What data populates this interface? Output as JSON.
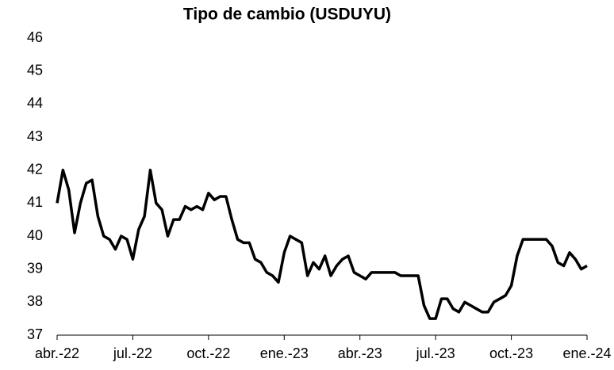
{
  "chart_data": {
    "type": "line",
    "title": "Tipo de cambio (USDUYU)",
    "categories": [
      "abr.-22",
      null,
      null,
      null,
      null,
      null,
      null,
      null,
      null,
      null,
      null,
      null,
      null,
      "jul.-22",
      null,
      null,
      null,
      null,
      null,
      null,
      null,
      null,
      null,
      null,
      null,
      null,
      "oct.-22",
      null,
      null,
      null,
      null,
      null,
      null,
      null,
      null,
      null,
      null,
      null,
      null,
      "ene.-23",
      null,
      null,
      null,
      null,
      null,
      null,
      null,
      null,
      null,
      null,
      null,
      null,
      "abr.-23",
      null,
      null,
      null,
      null,
      null,
      null,
      null,
      null,
      null,
      null,
      null,
      null,
      "jul.-23",
      null,
      null,
      null,
      null,
      null,
      null,
      null,
      null,
      null,
      null,
      null,
      null,
      "oct.-23",
      null,
      null,
      null,
      null,
      null,
      null,
      null,
      null,
      null,
      null,
      null,
      null,
      "ene.-24"
    ],
    "series": [
      {
        "name": "USDUYU",
        "color": "#000000",
        "values": [
          41.0,
          42.0,
          41.4,
          40.1,
          41.0,
          41.6,
          41.7,
          40.6,
          40.0,
          39.9,
          39.6,
          40.0,
          39.9,
          39.3,
          40.2,
          40.6,
          42.0,
          41.0,
          40.8,
          40.0,
          40.5,
          40.5,
          40.9,
          40.8,
          40.9,
          40.8,
          41.3,
          41.1,
          41.2,
          41.2,
          40.5,
          39.9,
          39.8,
          39.8,
          39.3,
          39.2,
          38.9,
          38.8,
          38.6,
          39.5,
          40.0,
          39.9,
          39.8,
          38.8,
          39.2,
          39.0,
          39.4,
          38.8,
          39.1,
          39.3,
          39.4,
          38.9,
          38.8,
          38.7,
          38.9,
          38.9,
          38.9,
          38.9,
          38.9,
          38.8,
          38.8,
          38.8,
          38.8,
          37.9,
          37.5,
          37.5,
          38.1,
          38.1,
          37.8,
          37.7,
          38.0,
          37.9,
          37.8,
          37.7,
          37.7,
          38.0,
          38.1,
          38.2,
          38.5,
          39.4,
          39.9,
          39.9,
          39.9,
          39.9,
          39.9,
          39.7,
          39.2,
          39.1,
          39.5,
          39.3,
          39.0,
          39.1
        ]
      }
    ],
    "ylim": [
      37,
      46
    ],
    "yticks": [
      37,
      38,
      39,
      40,
      41,
      42,
      43,
      44,
      45,
      46
    ],
    "grid": false
  }
}
